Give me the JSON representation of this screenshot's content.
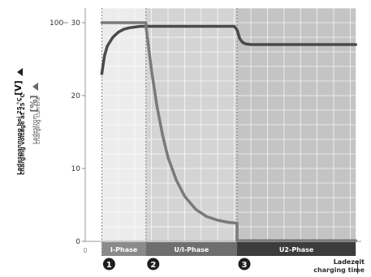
{
  "chart_data": {
    "type": "line",
    "axis": {
      "y_left_label_de": "Ladespannung bei 25 °C",
      "y_left_label_en": "charging voltage at 25 °C",
      "y_left_unit": "[V]",
      "y_right_label_de": "Ladestrom",
      "y_right_label_en": "charging current",
      "y_right_unit": "[%]",
      "y_left_ticks": [
        "30",
        "20",
        "10",
        "0"
      ],
      "y_left_tick_values": [
        30,
        20,
        10,
        0
      ],
      "y_right_ticks": [
        "100"
      ],
      "y_right_tick_values": [
        100
      ],
      "x_zero_label": "0",
      "x_label_de": "Ladezeit",
      "x_label_en": "charging time",
      "ylim": [
        0,
        32
      ],
      "xlim": [
        0,
        100
      ]
    },
    "phases": [
      {
        "label": "I-Phase",
        "marker": "1",
        "start": 6,
        "end": 22,
        "bg": "#ececec",
        "bar": "#8a8a8a"
      },
      {
        "label": "U/I-Phase",
        "marker": "2",
        "start": 22,
        "end": 55,
        "bg": "#d4d4d4",
        "bar": "#6e6e6e"
      },
      {
        "label": "U2-Phase",
        "marker": "3",
        "start": 55,
        "end": 98,
        "bg": "#c4c4c4",
        "bar": "#3c3c3c"
      }
    ],
    "series": [
      {
        "kind": "voltage",
        "color": "#4a4a4a",
        "x": [
          6,
          7,
          8,
          10,
          12,
          14,
          16,
          18,
          20,
          22,
          30,
          40,
          50,
          54,
          55,
          56,
          57,
          58,
          60,
          70,
          80,
          90,
          98
        ],
        "y": [
          23.0,
          25.5,
          26.8,
          28.0,
          28.7,
          29.1,
          29.3,
          29.4,
          29.5,
          29.5,
          29.5,
          29.5,
          29.5,
          29.5,
          29.0,
          27.8,
          27.3,
          27.1,
          27.0,
          27.0,
          27.0,
          27.0,
          27.0
        ]
      },
      {
        "kind": "current",
        "color": "#7a7a7a",
        "x": [
          6,
          22,
          22,
          24,
          26,
          28,
          30,
          33,
          36,
          40,
          44,
          48,
          52,
          55,
          55,
          60,
          70,
          80,
          90,
          98
        ],
        "y": [
          30.0,
          30.0,
          29.5,
          23.5,
          18.5,
          14.6,
          11.5,
          8.4,
          6.2,
          4.4,
          3.4,
          2.9,
          2.6,
          2.5,
          0.1,
          0.1,
          0.1,
          0.1,
          0.1,
          0.1
        ]
      }
    ]
  }
}
